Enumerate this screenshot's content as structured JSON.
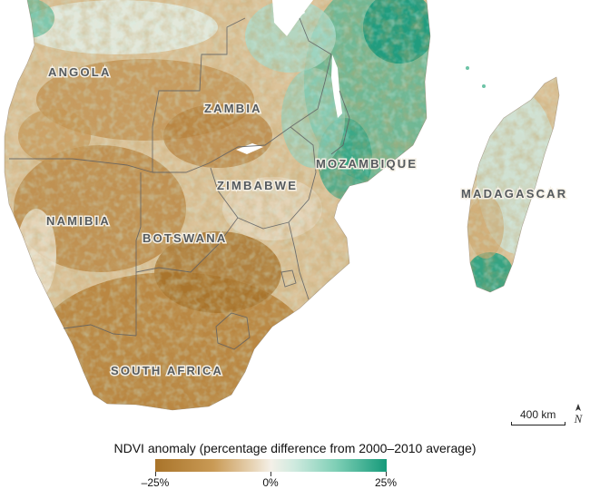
{
  "map": {
    "labels": {
      "angola": "ANGOLA",
      "zambia": "ZAMBIA",
      "mozambique": "MOZAMBIQUE",
      "zimbabwe": "ZIMBABWE",
      "madagascar": "MADAGASCAR",
      "namibia": "NAMIBIA",
      "botswana": "BOTSWANA",
      "south_africa": "SOUTH AFRICA"
    },
    "scale_bar": {
      "label": "400 km",
      "distance_km": 400
    },
    "north_arrow": "north-arrow-icon"
  },
  "legend": {
    "title": "NDVI anomaly (percentage difference from 2000–2010 average)",
    "min_label": "–25%",
    "mid_label": "0%",
    "max_label": "25%",
    "range_percent": [
      -25,
      25
    ],
    "colors": {
      "negative": "#a9742a",
      "neutral": "#f4f0e8",
      "positive": "#169a7a"
    }
  }
}
